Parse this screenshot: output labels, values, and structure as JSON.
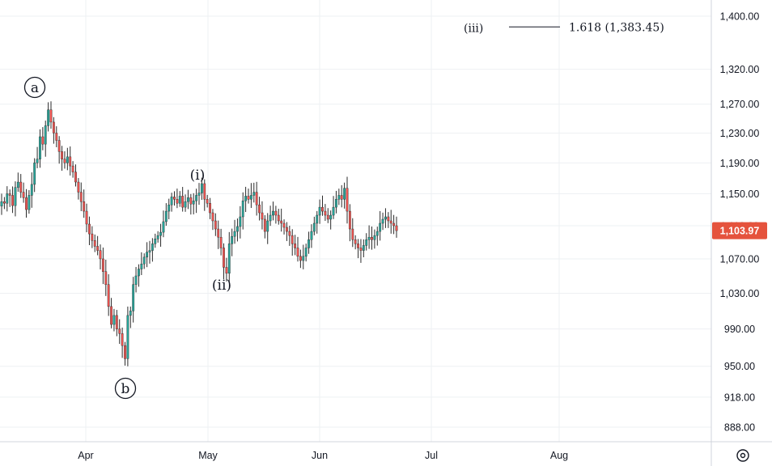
{
  "chart_data": {
    "type": "candlestick",
    "y_scale": "log",
    "ylim": [
      860,
      1420
    ],
    "y_ticks": [
      "888.00",
      "918.00",
      "950.00",
      "990.00",
      "1,030.00",
      "1,070.00",
      "1,110.00",
      "1,150.00",
      "1,190.00",
      "1,230.00",
      "1,270.00",
      "1,320.00",
      "1,400.00"
    ],
    "y_tick_values": [
      888,
      918,
      950,
      990,
      1030,
      1070,
      1110,
      1150,
      1190,
      1230,
      1270,
      1320,
      1400
    ],
    "x_ticks": [
      "Apr",
      "May",
      "Jun",
      "Jul",
      "Aug"
    ],
    "grid": true,
    "last_price": 1103.97,
    "last_price_label": "1,103.97",
    "up_color": "#26a69a",
    "down_color": "#ef5350",
    "candle_color": "#2b2b2b",
    "price_badge_color": "#e5533d",
    "fib_level": {
      "label": "(iii)",
      "text": "1.618 (1,383.45)",
      "value": 1383.45
    },
    "wave_labels": [
      {
        "text": "a",
        "circled": true,
        "price": 1262
      },
      {
        "text": "b",
        "circled": true,
        "price": 958
      },
      {
        "text": "(i)",
        "circled": false,
        "price": 1163
      },
      {
        "text": "(ii)",
        "circled": false,
        "price": 1053
      }
    ],
    "series": [
      {
        "values": [
          1140,
          1138,
          1150,
          1148,
          1135,
          1158,
          1165,
          1152,
          1145,
          1130,
          1148,
          1162,
          1190,
          1195,
          1225,
          1215,
          1240,
          1262,
          1245,
          1230,
          1220,
          1205,
          1195,
          1190,
          1198,
          1186,
          1178,
          1165,
          1152,
          1140,
          1128,
          1112,
          1100,
          1092,
          1085,
          1080,
          1070,
          1055,
          1040,
          1015,
          995,
          1005,
          990,
          985,
          972,
          958,
          1005,
          1010,
          1040,
          1050,
          1058,
          1064,
          1072,
          1078,
          1080,
          1088,
          1094,
          1098,
          1102,
          1115,
          1128,
          1136,
          1146,
          1143,
          1138,
          1147,
          1133,
          1140,
          1145,
          1137,
          1141,
          1148,
          1151,
          1163,
          1143,
          1138,
          1126,
          1116,
          1106,
          1096,
          1083,
          1060,
          1053,
          1088,
          1097,
          1103,
          1109,
          1121,
          1141,
          1147,
          1143,
          1148,
          1152,
          1136,
          1126,
          1118,
          1103,
          1116,
          1123,
          1128,
          1123,
          1116,
          1113,
          1108,
          1103,
          1098,
          1088,
          1083,
          1073,
          1068,
          1073,
          1083,
          1093,
          1103,
          1113,
          1123,
          1133,
          1128,
          1123,
          1118,
          1123,
          1133,
          1143,
          1148,
          1143,
          1157,
          1128,
          1106,
          1093,
          1088,
          1083,
          1080,
          1086,
          1093,
          1096,
          1093,
          1098,
          1103,
          1113,
          1118,
          1121,
          1116,
          1113,
          1110,
          1103.97
        ]
      }
    ]
  }
}
